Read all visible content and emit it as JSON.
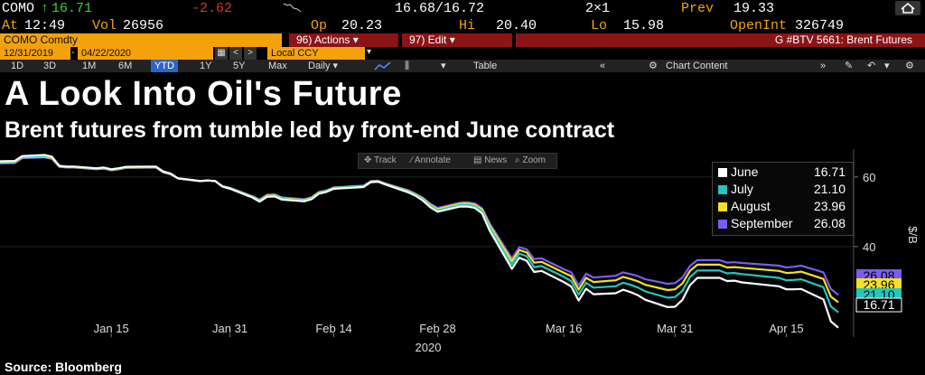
{
  "quote_bar": {
    "ticker": "COMO",
    "arrow": "↑",
    "last": "16.71",
    "change": "-2.62",
    "bid_ask": "16.68/16.72",
    "size": "2×1",
    "prev_label": "Prev",
    "prev": "19.33",
    "time_label": "At",
    "time": "12:49",
    "vol_label": "Vol",
    "vol": "26956",
    "open_label": "Op",
    "open": "20.23",
    "high_label": "Hi",
    "high": "20.40",
    "low_label": "Lo",
    "low": "15.98",
    "oi_label": "OpenInt",
    "oi": "326749"
  },
  "command_bar": {
    "security": "COMO Comdty",
    "actions": "96) Actions ▾",
    "edit": "97) Edit ▾",
    "page": "G #BTV 5661: Brent Futures"
  },
  "date_range": {
    "start": "12/31/2019",
    "end": "04/22/2020",
    "currency": "Local CCY"
  },
  "toolbar": {
    "periods": [
      "1D",
      "3D",
      "1M",
      "6M",
      "YTD",
      "1Y",
      "5Y",
      "Max"
    ],
    "selected_period": "YTD",
    "frequency": "Daily ▾",
    "table": "Table",
    "chart_content": "Chart Content"
  },
  "chart_tools": {
    "track": "Track",
    "annotate": "Annotate",
    "news": "News",
    "zoom": "Zoom"
  },
  "title": "A Look Into Oil's Future",
  "subtitle": "Brent futures from tumble led by front-end June contract",
  "source": "Source: Bloomberg",
  "colors": {
    "june": "#ffffff",
    "july": "#22c7c0",
    "august": "#f5e21c",
    "september": "#7b5cf0",
    "amber": "#f4a20b",
    "red_bar": "#8b1416"
  },
  "chart_data": {
    "type": "line",
    "title": "A Look Into Oil's Future",
    "subtitle": "Brent futures from tumble led by front-end June contract",
    "ylabel": "$/B",
    "xlabel": "2020",
    "ylim": [
      14,
      68
    ],
    "yticks": [
      40,
      60
    ],
    "x_tick_labels": [
      "Jan 15",
      "Jan 31",
      "Feb 14",
      "Feb 28",
      "Mar 16",
      "Mar 31",
      "Apr 15"
    ],
    "x_tick_dates": [
      "2020-01-15",
      "2020-01-31",
      "2020-02-14",
      "2020-02-28",
      "2020-03-16",
      "2020-03-31",
      "2020-04-15"
    ],
    "x_range": [
      "2019-12-31",
      "2020-04-22"
    ],
    "legend_position": "top-right",
    "x": [
      "2019-12-31",
      "2020-01-02",
      "2020-01-03",
      "2020-01-06",
      "2020-01-07",
      "2020-01-08",
      "2020-01-09",
      "2020-01-10",
      "2020-01-13",
      "2020-01-14",
      "2020-01-15",
      "2020-01-16",
      "2020-01-17",
      "2020-01-21",
      "2020-01-22",
      "2020-01-23",
      "2020-01-24",
      "2020-01-27",
      "2020-01-28",
      "2020-01-29",
      "2020-01-30",
      "2020-01-31",
      "2020-02-03",
      "2020-02-04",
      "2020-02-05",
      "2020-02-06",
      "2020-02-07",
      "2020-02-10",
      "2020-02-11",
      "2020-02-12",
      "2020-02-13",
      "2020-02-14",
      "2020-02-18",
      "2020-02-19",
      "2020-02-20",
      "2020-02-21",
      "2020-02-24",
      "2020-02-25",
      "2020-02-26",
      "2020-02-27",
      "2020-02-28",
      "2020-03-02",
      "2020-03-03",
      "2020-03-04",
      "2020-03-05",
      "2020-03-06",
      "2020-03-09",
      "2020-03-10",
      "2020-03-11",
      "2020-03-12",
      "2020-03-13",
      "2020-03-16",
      "2020-03-17",
      "2020-03-18",
      "2020-03-19",
      "2020-03-20",
      "2020-03-23",
      "2020-03-24",
      "2020-03-25",
      "2020-03-26",
      "2020-03-27",
      "2020-03-30",
      "2020-03-31",
      "2020-04-01",
      "2020-04-02",
      "2020-04-03",
      "2020-04-06",
      "2020-04-07",
      "2020-04-08",
      "2020-04-09",
      "2020-04-14",
      "2020-04-15",
      "2020-04-16",
      "2020-04-17",
      "2020-04-20",
      "2020-04-21",
      "2020-04-22"
    ],
    "series": [
      {
        "name": "June",
        "last": "16.71",
        "values": [
          64.5,
          64.6,
          66.0,
          66.3,
          65.8,
          63.2,
          63.0,
          63.0,
          62.5,
          62.7,
          62.2,
          62.5,
          62.9,
          63.0,
          61.6,
          61.0,
          59.6,
          58.8,
          59.0,
          58.8,
          57.2,
          56.6,
          54.1,
          52.9,
          54.3,
          54.4,
          53.5,
          53.0,
          53.6,
          55.2,
          55.7,
          56.6,
          57.1,
          58.5,
          58.6,
          57.8,
          55.6,
          54.6,
          53.2,
          51.3,
          50.0,
          51.5,
          51.5,
          51.1,
          49.5,
          44.6,
          33.6,
          36.8,
          35.9,
          32.7,
          33.0,
          29.8,
          28.5,
          24.5,
          27.9,
          26.3,
          26.6,
          27.6,
          26.9,
          26.0,
          24.7,
          22.6,
          22.7,
          24.7,
          28.9,
          31.0,
          31.0,
          30.1,
          30.2,
          29.7,
          28.6,
          27.7,
          27.7,
          27.8,
          24.8,
          18.5,
          16.7
        ]
      },
      {
        "name": "July",
        "last": "21.10",
        "values": [
          64.3,
          64.4,
          65.8,
          66.0,
          65.6,
          63.1,
          62.9,
          62.9,
          62.4,
          62.6,
          62.1,
          62.4,
          62.8,
          62.9,
          61.5,
          60.9,
          59.6,
          58.8,
          59.0,
          58.8,
          57.3,
          56.7,
          54.3,
          53.1,
          54.5,
          54.6,
          53.7,
          53.2,
          53.8,
          55.4,
          55.9,
          56.8,
          57.3,
          58.6,
          58.7,
          57.9,
          55.8,
          54.8,
          53.5,
          51.7,
          50.4,
          51.9,
          52.0,
          51.6,
          50.1,
          45.4,
          34.8,
          38.0,
          37.2,
          34.1,
          34.4,
          31.3,
          30.1,
          26.2,
          29.6,
          28.2,
          28.6,
          29.6,
          29.0,
          28.2,
          27.1,
          25.3,
          25.5,
          27.3,
          31.2,
          33.1,
          33.1,
          32.3,
          32.4,
          32.1,
          31.0,
          30.3,
          30.4,
          30.6,
          28.3,
          22.8,
          21.1
        ]
      },
      {
        "name": "August",
        "last": "23.96",
        "values": [
          64.1,
          64.2,
          65.6,
          65.8,
          65.4,
          63.0,
          62.8,
          62.8,
          62.3,
          62.5,
          62.0,
          62.3,
          62.7,
          62.8,
          61.4,
          60.8,
          59.6,
          58.8,
          59.0,
          58.8,
          57.3,
          56.8,
          54.4,
          53.3,
          54.7,
          54.8,
          53.9,
          53.4,
          54.0,
          55.6,
          56.0,
          56.9,
          57.4,
          58.7,
          58.8,
          58.0,
          56.0,
          55.0,
          53.8,
          52.0,
          50.8,
          52.3,
          52.4,
          52.0,
          50.6,
          46.1,
          35.8,
          39.0,
          38.3,
          35.4,
          35.6,
          32.5,
          31.5,
          27.6,
          31.0,
          29.8,
          30.3,
          31.3,
          30.7,
          30.0,
          29.0,
          27.5,
          27.7,
          29.4,
          33.0,
          34.8,
          34.8,
          34.0,
          34.1,
          33.9,
          33.0,
          32.4,
          32.5,
          32.8,
          30.7,
          25.6,
          24.0
        ]
      },
      {
        "name": "September",
        "last": "26.08",
        "values": [
          63.9,
          64.0,
          65.4,
          65.6,
          65.2,
          62.9,
          62.7,
          62.7,
          62.2,
          62.4,
          61.9,
          62.2,
          62.6,
          62.7,
          61.3,
          60.7,
          59.6,
          58.8,
          59.0,
          58.8,
          57.4,
          56.9,
          54.5,
          53.5,
          54.9,
          55.0,
          54.1,
          53.6,
          54.2,
          55.7,
          56.1,
          57.0,
          57.5,
          58.8,
          58.9,
          58.1,
          56.2,
          55.2,
          54.0,
          52.3,
          51.1,
          52.6,
          52.7,
          52.4,
          51.0,
          46.7,
          36.6,
          39.8,
          39.2,
          36.4,
          36.6,
          33.5,
          32.6,
          28.8,
          32.2,
          31.1,
          31.6,
          32.6,
          32.1,
          31.5,
          30.6,
          29.3,
          29.5,
          31.1,
          34.4,
          36.1,
          36.1,
          35.4,
          35.5,
          35.3,
          34.5,
          34.0,
          34.2,
          34.5,
          32.6,
          27.8,
          26.1
        ]
      }
    ]
  }
}
